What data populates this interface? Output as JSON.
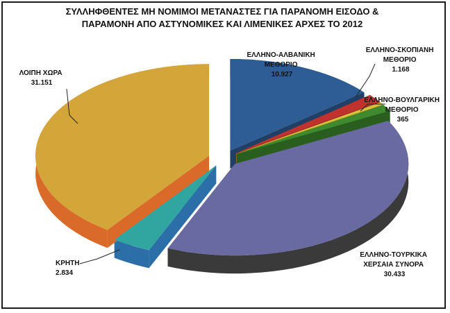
{
  "chart_data": {
    "type": "pie",
    "title_lines": [
      "ΣΥΛΛΗΦΘΕΝΤΕΣ ΜΗ ΝΟΜΙΜΟΙ ΜΕΤΑΝΑΣΤΕΣ ΓΙΑ ΠΑΡΑΝΟΜΗ ΕΙΣΟΔΟ &",
      "ΠΑΡΑΜΟΝΗ ΑΠΟ ΑΣΤΥΝΟΜΙΚΕΣ ΚΑΙ ΛΙΜΕΝΙΚΕΣ ΑΡΧΕΣ ΤΟ 2012"
    ],
    "slices": [
      {
        "label_lines": [
          "ΕΛΛΗΝΟ-ΑΛΒΑΝΙΚΗ",
          "ΜΕΘΟΡΙΟ"
        ],
        "value": 10927,
        "value_text": "10.927",
        "color": "#2e5c94",
        "side_color": "#1f3f66"
      },
      {
        "label_lines": [
          "ΕΛΛΗΝΟ-ΣΚΟΠΙΑΝΗ",
          "ΜΕΘΟΡΙΟ"
        ],
        "value": 1168,
        "value_text": "1.168",
        "color": "#c0322e",
        "side_color": "#862220"
      },
      {
        "label_lines": [
          "ΕΛΛΗΝΟ-ΒΟΥΛΓΑΡΙΚΗ",
          "ΜΕΘΟΡΙΟ"
        ],
        "value": 365,
        "value_text": "365",
        "color": "#d4c23a",
        "side_color": "#8f8222"
      },
      {
        "label_lines": [
          "",
          ""
        ],
        "value": 0,
        "value_text": "",
        "color": "#3f8a2e",
        "side_color": "#2a5e1e"
      },
      {
        "label_lines": [
          "ΕΛΛΗΝΟ-ΤΟΥΡΚΙΚΑ",
          "ΧΕΡΣΑΙΑ ΣΥΝΟΡΑ"
        ],
        "value": 30433,
        "value_text": "30.433",
        "color": "#6a6aa3",
        "side_color": "#3a3a3a"
      },
      {
        "label_lines": [
          "ΚΡΗΤΗ"
        ],
        "value": 2834,
        "value_text": "2.834",
        "color": "#31a6a0",
        "side_color": "#2b6ea8"
      },
      {
        "label_lines": [
          "ΛΟΙΠΗ ΧΩΡΑ"
        ],
        "value": 31151,
        "value_text": "31.151",
        "color": "#d4a63a",
        "side_color": "#d96a2a"
      }
    ]
  }
}
